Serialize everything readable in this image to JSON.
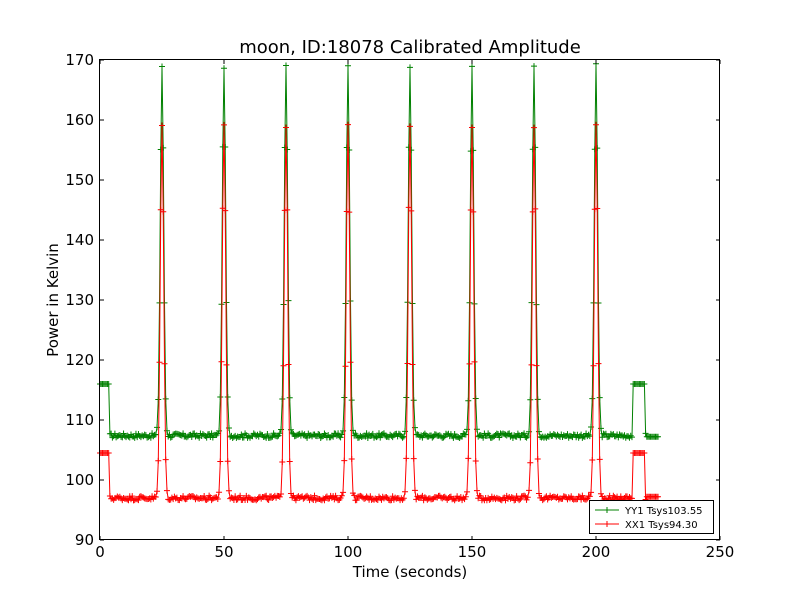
{
  "chart_data": {
    "type": "line",
    "title": "moon, ID:18078 Calibrated Amplitude",
    "xlabel": "Time (seconds)",
    "ylabel": "Power in Kelvin",
    "xlim": [
      0,
      250
    ],
    "ylim": [
      90,
      170
    ],
    "xticks": [
      "0",
      "50",
      "100",
      "150",
      "200",
      "250"
    ],
    "yticks": [
      "90",
      "100",
      "110",
      "120",
      "130",
      "140",
      "150",
      "160",
      "170"
    ],
    "grid": false,
    "legend_position": "lower-right",
    "marker": "plus",
    "peak_times": [
      25,
      50,
      75,
      100,
      125,
      150,
      175,
      200
    ],
    "series": [
      {
        "name": "YY1 Tsys103.55",
        "color": "#008000",
        "baseline": 107.4,
        "peak": 169,
        "start_level": 116,
        "tail_level": 116,
        "end_level": 107.2,
        "x_range": [
          0,
          225
        ]
      },
      {
        "name": "XX1 Tsys94.30",
        "color": "#ff0000",
        "baseline": 97.0,
        "peak": 159,
        "start_level": 104.5,
        "tail_level": 104.5,
        "end_level": 97.2,
        "x_range": [
          0,
          225
        ]
      }
    ]
  }
}
